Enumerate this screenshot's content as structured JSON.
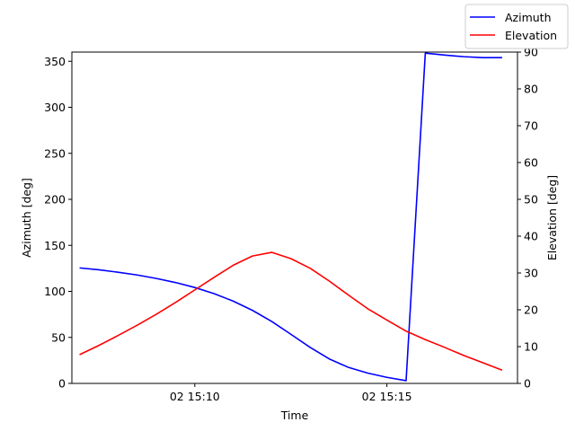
{
  "chart_data": {
    "type": "line",
    "xlabel": "Time",
    "ylabel_left": "Azimuth [deg]",
    "ylabel_right": "Elevation [deg]",
    "x_tick_labels": [
      "02 15:10",
      "02 15:15"
    ],
    "x_ticks_minutes": [
      10,
      15
    ],
    "xlim_minutes": [
      6.8,
      18.4
    ],
    "ylim_left": [
      0,
      360
    ],
    "ylim_right": [
      0,
      90
    ],
    "yticks_left": [
      0,
      50,
      100,
      150,
      200,
      250,
      300,
      350
    ],
    "yticks_right": [
      0,
      10,
      20,
      30,
      40,
      50,
      60,
      70,
      80,
      90
    ],
    "grid": false,
    "legend_position": "top-right",
    "series": [
      {
        "name": "Azimuth",
        "axis": "left",
        "color": "#0000ff",
        "x": [
          7.0,
          7.5,
          8.0,
          8.5,
          9.0,
          9.5,
          10.0,
          10.5,
          11.0,
          11.5,
          12.0,
          12.5,
          13.0,
          13.5,
          14.0,
          14.5,
          15.0,
          15.5,
          16.0,
          16.5,
          17.0,
          17.5,
          18.0
        ],
        "values": [
          125.5,
          123.5,
          120.8,
          117.8,
          114.0,
          109.6,
          104.2,
          97.6,
          89.4,
          79.4,
          67.4,
          53.4,
          39.2,
          26.6,
          17.4,
          11.2,
          6.6,
          3.0,
          358.8,
          356.8,
          355.0,
          354.0,
          354.0
        ]
      },
      {
        "name": "Elevation",
        "axis": "right",
        "color": "#ff0000",
        "x": [
          7.0,
          7.5,
          8.0,
          8.5,
          9.0,
          9.5,
          10.0,
          10.5,
          11.0,
          11.5,
          12.0,
          12.5,
          13.0,
          13.5,
          14.0,
          14.5,
          15.0,
          15.5,
          16.0,
          16.5,
          17.0,
          17.5,
          18.0
        ],
        "values": [
          7.8,
          10.3,
          13.0,
          15.8,
          18.8,
          22.0,
          25.4,
          28.8,
          32.1,
          34.6,
          35.6,
          33.9,
          31.3,
          27.8,
          24.0,
          20.3,
          17.2,
          14.2,
          11.9,
          9.8,
          7.6,
          5.6,
          3.6
        ]
      }
    ]
  }
}
